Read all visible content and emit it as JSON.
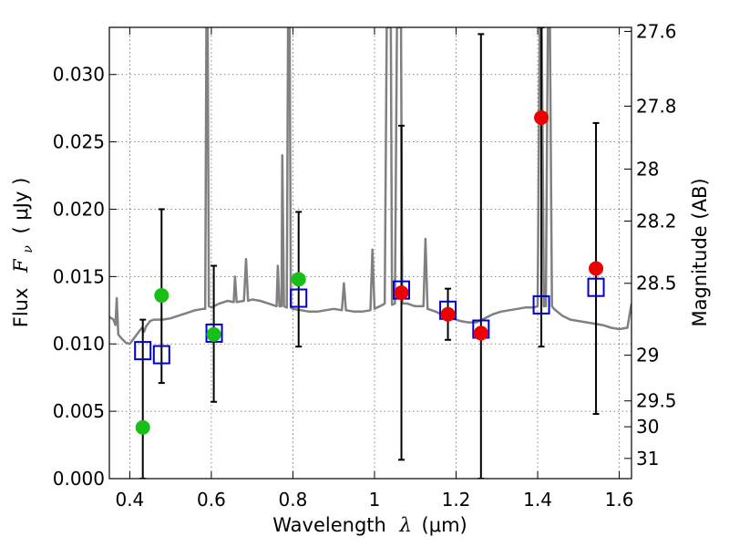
{
  "chart_data": {
    "type": "scatter",
    "xlabel_text": "Wavelength",
    "xlabel_symbol": "λ",
    "xlabel_unit": "(μm)",
    "ylabel_text": "Flux",
    "ylabel_symbol": "F",
    "ylabel_sub": "ν",
    "ylabel_unit": "( μJy )",
    "y2label": "Magnitude (AB)",
    "xlim": [
      0.35,
      1.63
    ],
    "ylim": [
      0.0,
      0.0335
    ],
    "grid": true,
    "x_ticks": [
      0.4,
      0.6,
      0.8,
      1.0,
      1.2,
      1.4,
      1.6
    ],
    "x_tick_labels": [
      "0.4",
      "0.6",
      "0.8",
      "1",
      "1.2",
      "1.4",
      "1.6"
    ],
    "y_ticks": [
      0.0,
      0.005,
      0.01,
      0.015,
      0.02,
      0.025,
      0.03
    ],
    "y_tick_labels": [
      "0.000",
      "0.005",
      "0.010",
      "0.015",
      "0.020",
      "0.025",
      "0.030"
    ],
    "y2_ticks": [
      {
        "label": "27.6",
        "flux": 0.0332
      },
      {
        "label": "27.8",
        "flux": 0.02765
      },
      {
        "label": "28",
        "flux": 0.02298
      },
      {
        "label": "28.2",
        "flux": 0.01912
      },
      {
        "label": "28.5",
        "flux": 0.0145
      },
      {
        "label": "29",
        "flux": 0.00916
      },
      {
        "label": "29.5",
        "flux": 0.00577
      },
      {
        "label": "30",
        "flux": 0.00385
      },
      {
        "label": "31",
        "flux": 0.0015
      }
    ],
    "colors": {
      "template": "#808080",
      "green": "#17bf17",
      "red": "#ee0000",
      "model": "#0000cc",
      "error": "#000000"
    },
    "template_spectrum": [
      [
        0.35,
        0.012
      ],
      [
        0.36,
        0.0118
      ],
      [
        0.365,
        0.0114
      ],
      [
        0.368,
        0.0134
      ],
      [
        0.372,
        0.0107
      ],
      [
        0.38,
        0.0104
      ],
      [
        0.39,
        0.0101
      ],
      [
        0.4,
        0.01
      ],
      [
        0.41,
        0.0104
      ],
      [
        0.42,
        0.0108
      ],
      [
        0.43,
        0.0112
      ],
      [
        0.435,
        0.0109
      ],
      [
        0.44,
        0.0113
      ],
      [
        0.45,
        0.0117
      ],
      [
        0.46,
        0.0118
      ],
      [
        0.48,
        0.0118
      ],
      [
        0.5,
        0.0119
      ],
      [
        0.52,
        0.0121
      ],
      [
        0.54,
        0.0123
      ],
      [
        0.56,
        0.0125
      ],
      [
        0.58,
        0.0126
      ],
      [
        0.585,
        0.0126
      ],
      [
        0.588,
        0.0335
      ],
      [
        0.591,
        0.0335
      ],
      [
        0.594,
        0.0128
      ],
      [
        0.6,
        0.0127
      ],
      [
        0.62,
        0.013
      ],
      [
        0.64,
        0.0132
      ],
      [
        0.655,
        0.0131
      ],
      [
        0.658,
        0.015
      ],
      [
        0.662,
        0.0131
      ],
      [
        0.68,
        0.0132
      ],
      [
        0.685,
        0.0163
      ],
      [
        0.69,
        0.0132
      ],
      [
        0.7,
        0.0133
      ],
      [
        0.72,
        0.0132
      ],
      [
        0.74,
        0.013
      ],
      [
        0.76,
        0.0128
      ],
      [
        0.763,
        0.0158
      ],
      [
        0.767,
        0.0128
      ],
      [
        0.772,
        0.0128
      ],
      [
        0.774,
        0.024
      ],
      [
        0.778,
        0.0128
      ],
      [
        0.785,
        0.0127
      ],
      [
        0.788,
        0.0335
      ],
      [
        0.792,
        0.0335
      ],
      [
        0.795,
        0.0127
      ],
      [
        0.8,
        0.0126
      ],
      [
        0.82,
        0.0125
      ],
      [
        0.84,
        0.0124
      ],
      [
        0.86,
        0.0124
      ],
      [
        0.88,
        0.0125
      ],
      [
        0.9,
        0.0126
      ],
      [
        0.92,
        0.0125
      ],
      [
        0.925,
        0.0145
      ],
      [
        0.93,
        0.0125
      ],
      [
        0.95,
        0.0124
      ],
      [
        0.97,
        0.0124
      ],
      [
        0.99,
        0.0125
      ],
      [
        0.995,
        0.017
      ],
      [
        1.0,
        0.0126
      ],
      [
        1.02,
        0.0129
      ],
      [
        1.025,
        0.013
      ],
      [
        1.03,
        0.0335
      ],
      [
        1.04,
        0.0335
      ],
      [
        1.043,
        0.0129
      ],
      [
        1.05,
        0.013
      ],
      [
        1.055,
        0.0335
      ],
      [
        1.065,
        0.0335
      ],
      [
        1.068,
        0.013
      ],
      [
        1.08,
        0.013
      ],
      [
        1.1,
        0.0128
      ],
      [
        1.12,
        0.0128
      ],
      [
        1.125,
        0.0178
      ],
      [
        1.13,
        0.0126
      ],
      [
        1.15,
        0.0124
      ],
      [
        1.17,
        0.0121
      ],
      [
        1.19,
        0.0119
      ],
      [
        1.21,
        0.0117
      ],
      [
        1.23,
        0.0116
      ],
      [
        1.25,
        0.0116
      ],
      [
        1.27,
        0.0119
      ],
      [
        1.29,
        0.0122
      ],
      [
        1.31,
        0.0124
      ],
      [
        1.33,
        0.0125
      ],
      [
        1.35,
        0.0126
      ],
      [
        1.37,
        0.0127
      ],
      [
        1.39,
        0.0127
      ],
      [
        1.4,
        0.0128
      ],
      [
        1.405,
        0.0335
      ],
      [
        1.41,
        0.0335
      ],
      [
        1.415,
        0.0128
      ],
      [
        1.42,
        0.0128
      ],
      [
        1.425,
        0.0335
      ],
      [
        1.43,
        0.0335
      ],
      [
        1.435,
        0.0128
      ],
      [
        1.44,
        0.0126
      ],
      [
        1.46,
        0.0121
      ],
      [
        1.48,
        0.0118
      ],
      [
        1.5,
        0.0117
      ],
      [
        1.52,
        0.0116
      ],
      [
        1.54,
        0.0115
      ],
      [
        1.56,
        0.0114
      ],
      [
        1.58,
        0.0112
      ],
      [
        1.6,
        0.0111
      ],
      [
        1.62,
        0.0112
      ],
      [
        1.63,
        0.013
      ]
    ],
    "model_points": [
      {
        "x": 0.432,
        "y": 0.0095
      },
      {
        "x": 0.478,
        "y": 0.0092
      },
      {
        "x": 0.607,
        "y": 0.0108
      },
      {
        "x": 0.814,
        "y": 0.0134
      },
      {
        "x": 1.066,
        "y": 0.014
      },
      {
        "x": 1.18,
        "y": 0.0125
      },
      {
        "x": 1.261,
        "y": 0.0111
      },
      {
        "x": 1.409,
        "y": 0.0129
      },
      {
        "x": 1.543,
        "y": 0.0142
      }
    ],
    "green_points": [
      {
        "x": 0.432,
        "y": 0.0038,
        "yerr_low": 0.0,
        "yerr_high": 0.0118
      },
      {
        "x": 0.478,
        "y": 0.0136,
        "yerr_low": 0.0071,
        "yerr_high": 0.02
      },
      {
        "x": 0.606,
        "y": 0.0107,
        "yerr_low": 0.0057,
        "yerr_high": 0.0158
      },
      {
        "x": 0.814,
        "y": 0.0148,
        "yerr_low": 0.0098,
        "yerr_high": 0.0198
      }
    ],
    "red_points": [
      {
        "x": 1.066,
        "y": 0.0138,
        "yerr_low": 0.0014,
        "yerr_high": 0.0262
      },
      {
        "x": 1.18,
        "y": 0.0122,
        "yerr_low": 0.0103,
        "yerr_high": 0.0141
      },
      {
        "x": 1.261,
        "y": 0.0108,
        "yerr_low": 0.0,
        "yerr_high": 0.033
      },
      {
        "x": 1.409,
        "y": 0.0268,
        "yerr_low": 0.0098,
        "yerr_high": 0.0335
      },
      {
        "x": 1.543,
        "y": 0.0156,
        "yerr_low": 0.0048,
        "yerr_high": 0.0264
      }
    ]
  }
}
